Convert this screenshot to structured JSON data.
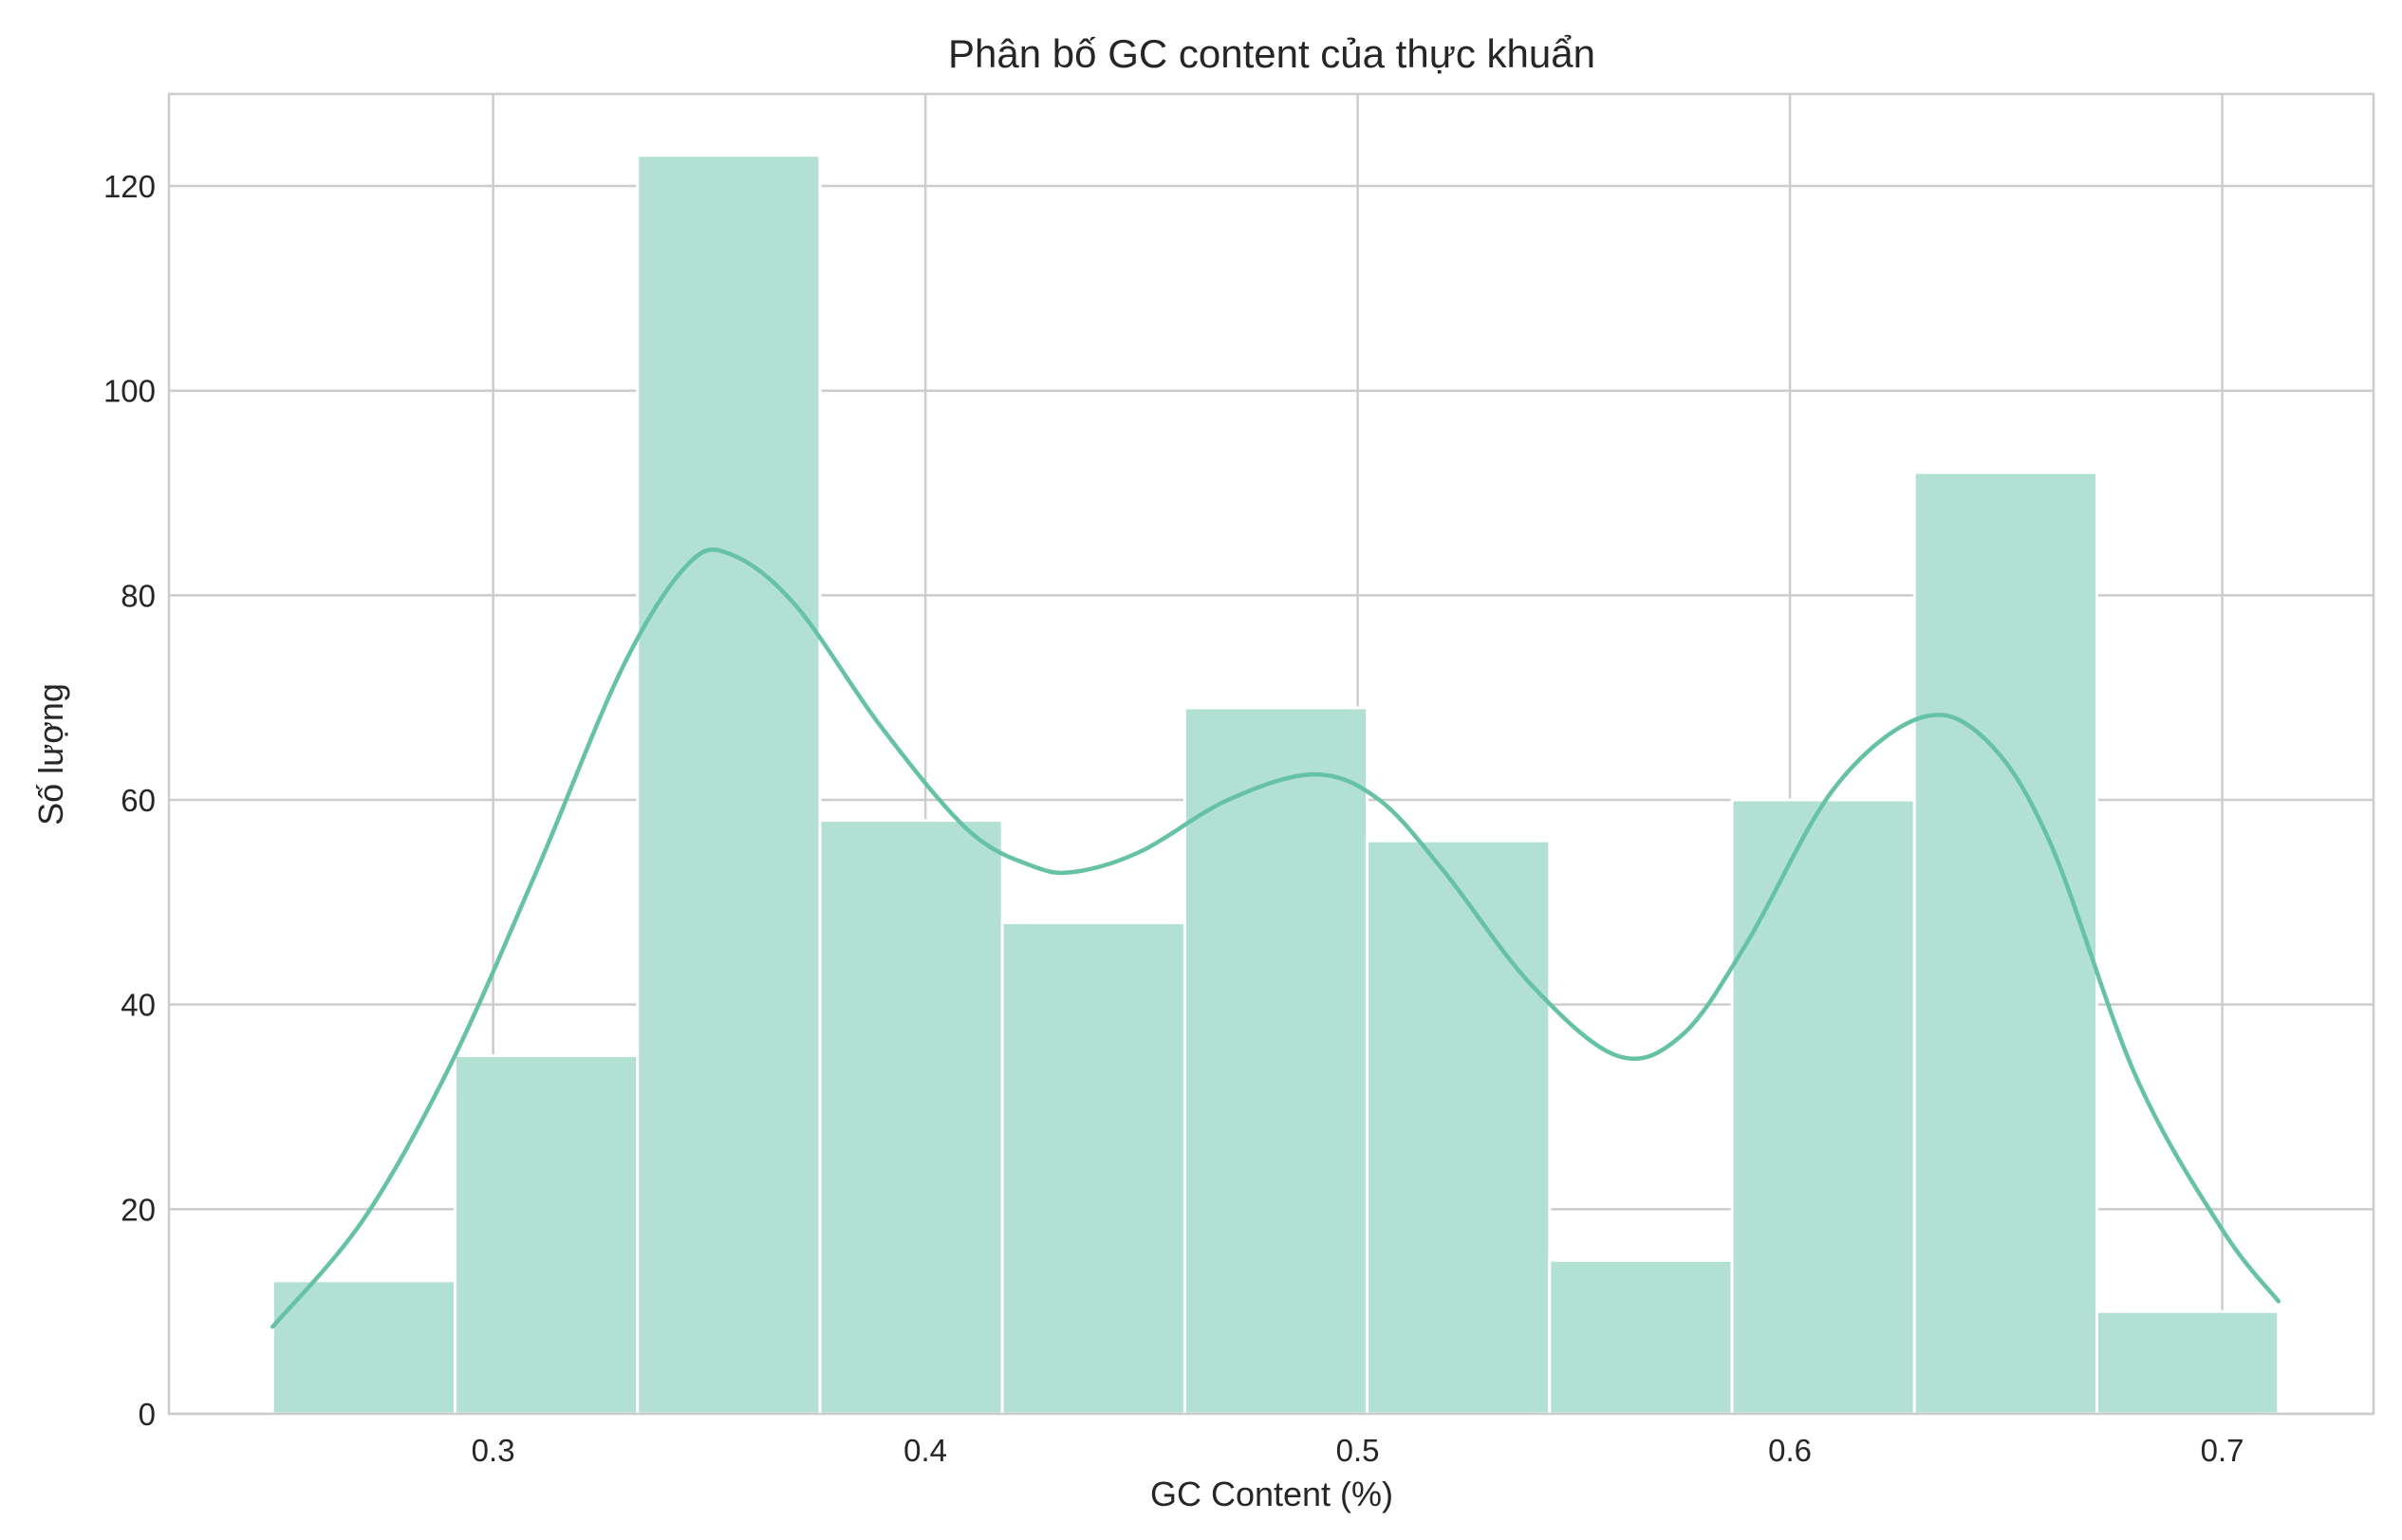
{
  "chart_data": {
    "type": "bar",
    "title": "Phân bố GC content của thực khuẩn",
    "xlabel": "GC Content (%)",
    "ylabel": "Số lượng",
    "xlim": [
      0.225,
      0.735
    ],
    "ylim": [
      0,
      129
    ],
    "x_ticks": [
      0.3,
      0.4,
      0.5,
      0.6,
      0.7
    ],
    "x_tick_labels": [
      "0.3",
      "0.4",
      "0.5",
      "0.6",
      "0.7"
    ],
    "y_ticks": [
      0,
      20,
      40,
      60,
      80,
      100,
      120
    ],
    "y_tick_labels": [
      "0",
      "20",
      "40",
      "60",
      "80",
      "100",
      "120"
    ],
    "bin_edges": [
      0.249,
      0.2912,
      0.3334,
      0.3756,
      0.4178,
      0.46,
      0.5022,
      0.5444,
      0.5866,
      0.6288,
      0.671,
      0.713
    ],
    "values": [
      13,
      35,
      123,
      58,
      48,
      69,
      56,
      15,
      60,
      92,
      10
    ],
    "kde": {
      "x": [
        0.249,
        0.27,
        0.29,
        0.31,
        0.33,
        0.345,
        0.355,
        0.37,
        0.39,
        0.41,
        0.425,
        0.435,
        0.45,
        0.47,
        0.49,
        0.505,
        0.52,
        0.54,
        0.56,
        0.575,
        0.59,
        0.61,
        0.63,
        0.645,
        0.66,
        0.68,
        0.7,
        0.713
      ],
      "y": [
        8.5,
        19,
        34,
        53,
        73,
        83,
        84,
        79,
        67,
        57,
        53.5,
        53,
        55,
        60,
        62.5,
        60,
        53,
        42,
        35,
        37,
        46,
        61,
        68,
        66,
        56,
        33,
        18,
        11
      ]
    },
    "bar_color": "#b2e0d2",
    "line_color": "#66c2a5",
    "grid": true,
    "legend": "none"
  }
}
